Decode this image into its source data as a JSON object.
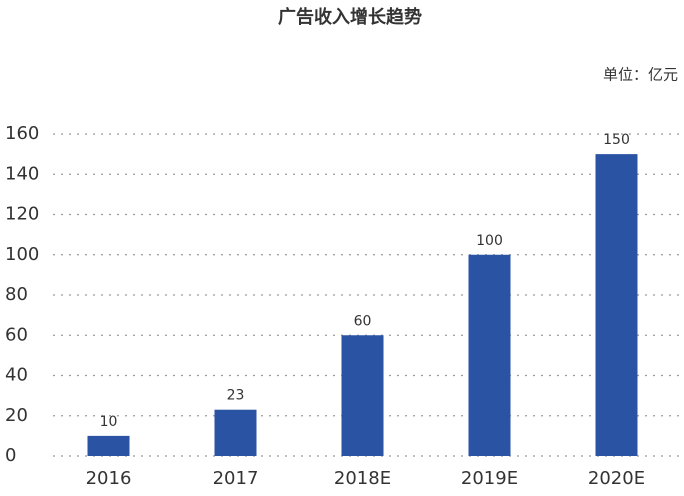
{
  "chart_data": {
    "type": "bar",
    "title": "广告收入增长趋势",
    "unit_label": "单位：亿元",
    "categories": [
      "2016",
      "2017",
      "2018E",
      "2019E",
      "2020E"
    ],
    "values": [
      10,
      23,
      60,
      100,
      150
    ],
    "color": "#2a53a4",
    "ylim": [
      0,
      160
    ],
    "yticks": [
      0,
      20,
      40,
      60,
      80,
      100,
      120,
      140,
      160
    ],
    "grid": true
  }
}
